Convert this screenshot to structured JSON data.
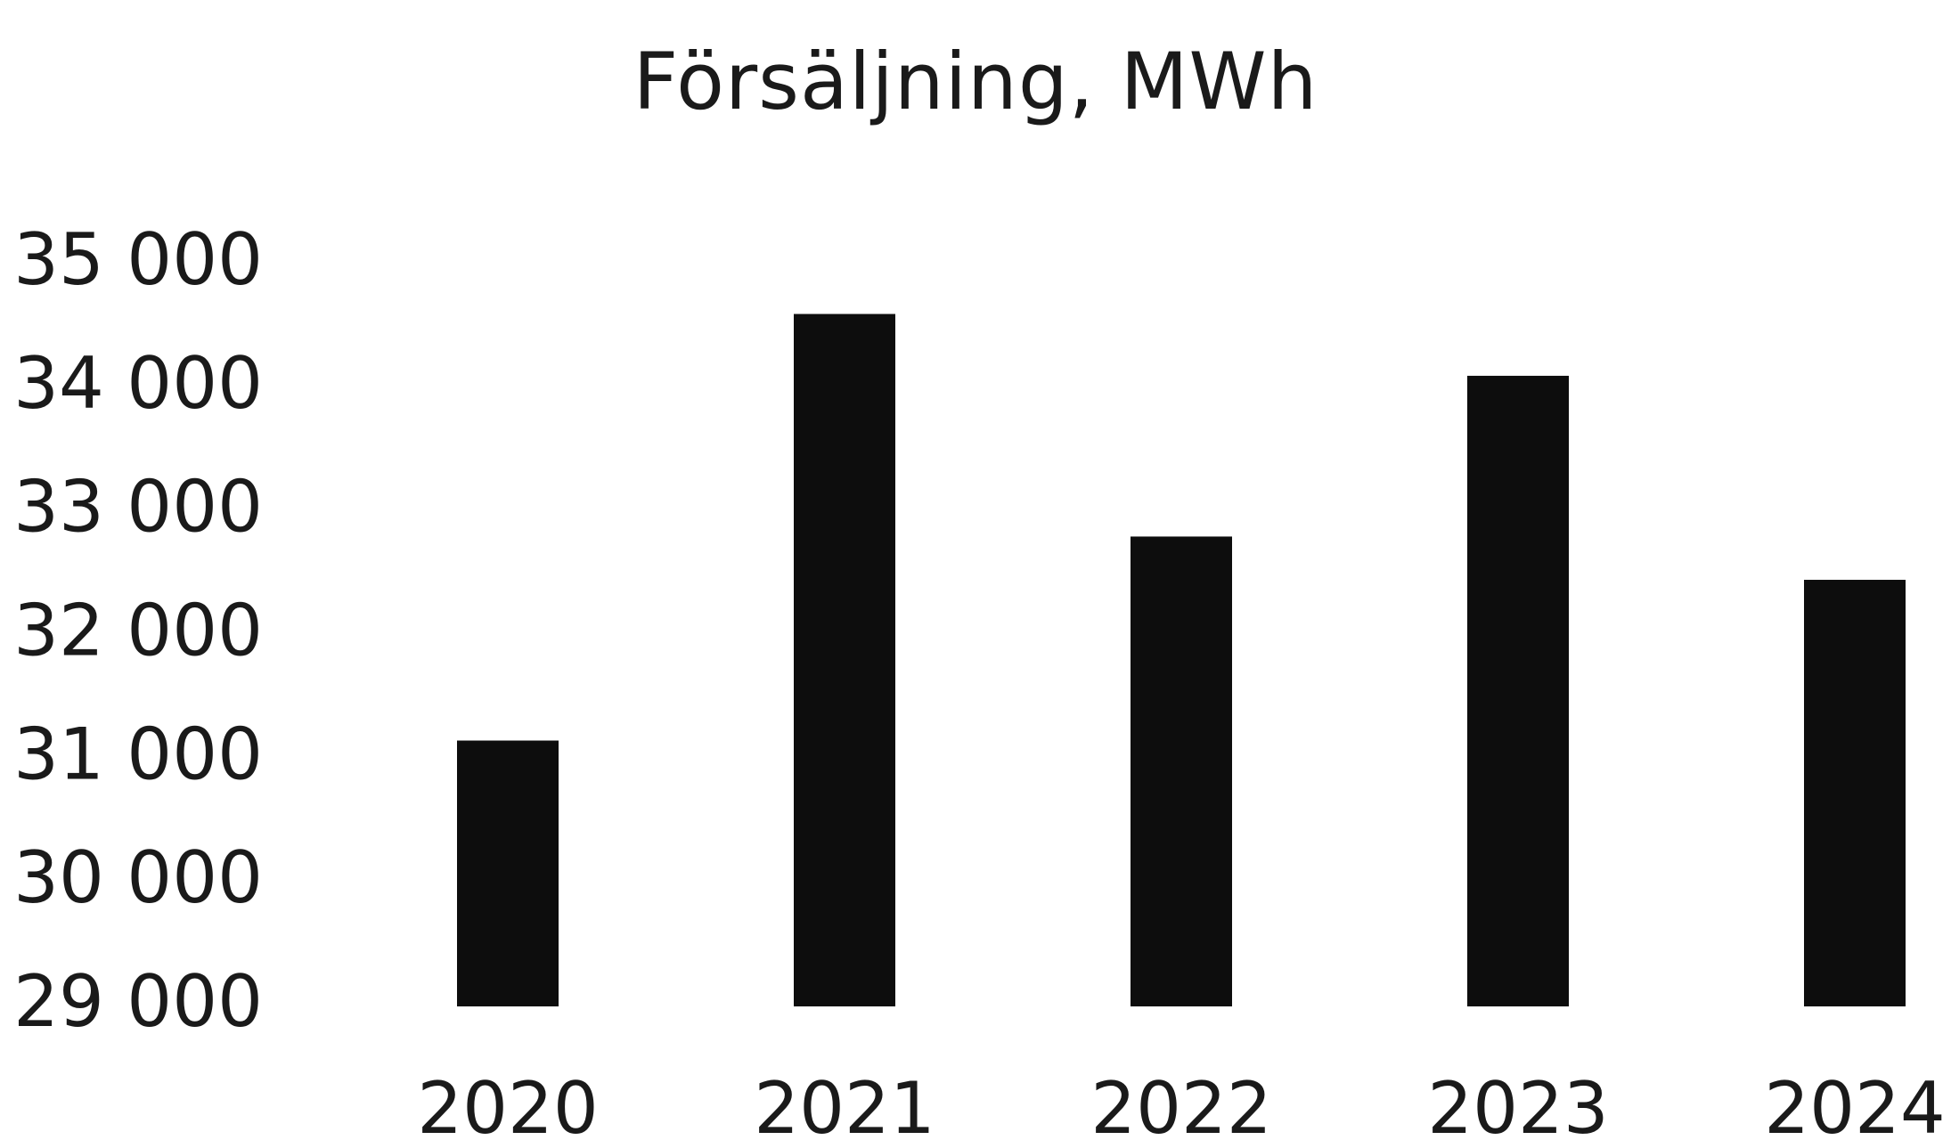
{
  "chart_data": {
    "type": "bar",
    "title": "Försäljning, MWh",
    "xlabel": "",
    "ylabel": "",
    "categories": [
      "2020",
      "2021",
      "2022",
      "2023",
      "2024"
    ],
    "values": [
      31150,
      34600,
      32800,
      34100,
      32450
    ],
    "ylim": [
      29000,
      35000
    ],
    "yticks": [
      35000,
      34000,
      33000,
      32000,
      31000,
      30000,
      29000
    ],
    "ytick_labels": [
      "35 000",
      "34 000",
      "33 000",
      "32 000",
      "31 000",
      "30 000",
      "29 000"
    ],
    "grid": false,
    "legend": "none",
    "bar_color": "#0d0d0d"
  }
}
